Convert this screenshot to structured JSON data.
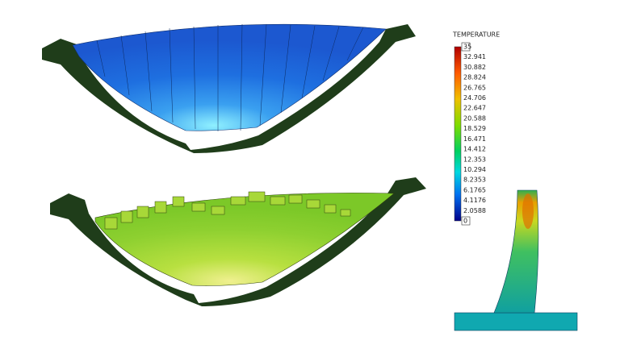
{
  "legend": {
    "title": "TEMPERATURE",
    "labels": [
      "35",
      "32.941",
      "30.882",
      "28.824",
      "26.765",
      "24.706",
      "22.647",
      "20.588",
      "18.529",
      "16.471",
      "14.412",
      "12.353",
      "10.294",
      "8.2353",
      "6.1765",
      "4.1176",
      "2.0588",
      "0"
    ]
  }
}
